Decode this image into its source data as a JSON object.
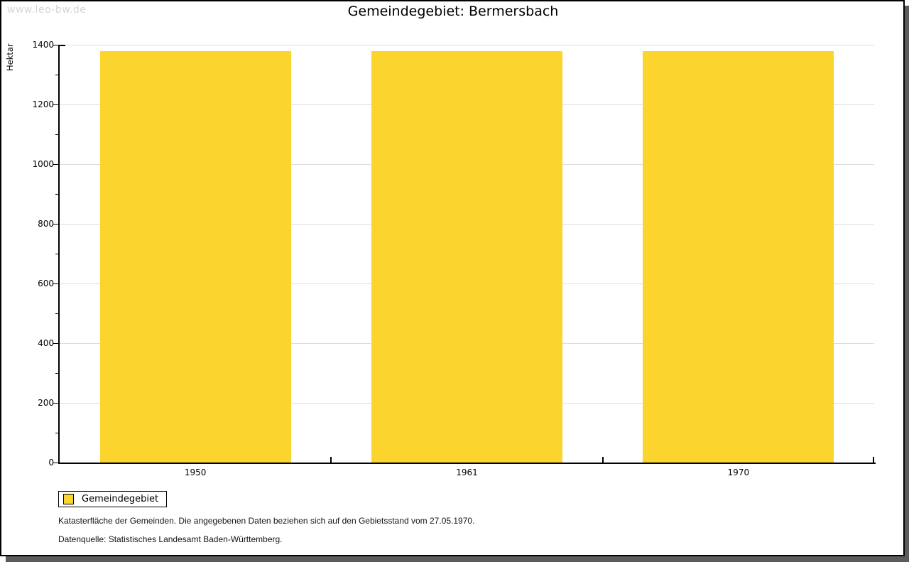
{
  "watermark": "www.leo-bw.de",
  "title": "Gemeindegebiet: Bermersbach",
  "chart_data": {
    "type": "bar",
    "categories": [
      "1950",
      "1961",
      "1970"
    ],
    "series": [
      {
        "name": "Gemeindegebiet",
        "color": "#fcd42e",
        "values": [
          1378,
          1378,
          1378
        ]
      }
    ],
    "title": "Gemeindegebiet: Bermersbach",
    "xlabel": "",
    "ylabel": "Hektar",
    "ylim": [
      0,
      1400
    ],
    "ytick_major_interval": 200,
    "ytick_minor_interval": 100,
    "yticks": [
      0,
      200,
      400,
      600,
      800,
      1000,
      1200,
      1400
    ],
    "grid": "horizontal major gridlines",
    "legend_position": "bottom-left"
  },
  "legend": {
    "items": [
      {
        "label": "Gemeindegebiet",
        "color": "#fcd42e"
      }
    ]
  },
  "footer": {
    "line1": "Katasterfläche der Gemeinden. Die angegebenen Daten beziehen sich auf den Gebietsstand vom 27.05.1970.",
    "line2": "Datenquelle: Statistisches Landesamt Baden-Württemberg."
  },
  "colors": {
    "bar": "#fcd42e",
    "axis": "#000000",
    "gridline": "#dcdcdc",
    "watermark": "#d5d5d5",
    "frame_border": "#000000",
    "frame_shadow": "#5c5c5c"
  }
}
